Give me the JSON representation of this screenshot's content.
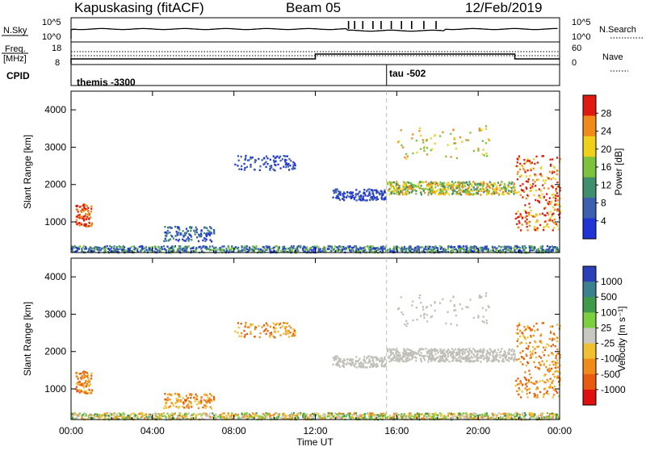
{
  "header": {
    "radar": "Kapuskasing (fitACF)",
    "beam": "Beam 05",
    "date": "12/Feb/2019"
  },
  "status_panel": {
    "nsky_label": "N.Sky",
    "nsky_ticks": [
      "10^5",
      "10^0"
    ],
    "nsearch_label": "N.Search",
    "nsearch_ticks": [
      "10^5",
      "10^0"
    ],
    "freq_label_1": "Freq.",
    "freq_label_2": "[MHz]",
    "freq_ticks": [
      "18",
      "8"
    ],
    "nave_label": "Nave",
    "nave_ticks": [
      "60",
      "0"
    ],
    "cpid_label": "CPID",
    "cpid_entries": [
      {
        "name": "themis -3300",
        "start_hour": 0
      },
      {
        "name": "tau -502",
        "start_hour": 15.5
      }
    ]
  },
  "chart_data": [
    {
      "type": "heatmap",
      "title": "Power",
      "xlabel": "",
      "ylabel": "Slant Range [km]",
      "xlim": [
        0,
        24
      ],
      "ylim": [
        180,
        4500
      ],
      "x_ticks": [
        "00:00",
        "04:00",
        "08:00",
        "12:00",
        "16:00",
        "20:00",
        "00:00"
      ],
      "y_ticks": [
        1000,
        2000,
        3000,
        4000
      ],
      "colorbar_label": "Power [dB]",
      "colorbar_ticks": [
        4,
        8,
        12,
        16,
        20,
        24,
        28
      ],
      "colorbar_colors": [
        "#1f33d6",
        "#3c5fb0",
        "#3f8f6e",
        "#7cc23a",
        "#f0d01a",
        "#f08a1a",
        "#e01a10"
      ],
      "cpid_change_hour": 15.5
    },
    {
      "type": "heatmap",
      "title": "Velocity",
      "xlabel": "Time UT",
      "ylabel": "Slant Range [km]",
      "xlim": [
        0,
        24
      ],
      "ylim": [
        180,
        4500
      ],
      "x_ticks": [
        "00:00",
        "04:00",
        "08:00",
        "12:00",
        "16:00",
        "20:00",
        "00:00"
      ],
      "y_ticks": [
        1000,
        2000,
        3000,
        4000
      ],
      "colorbar_label": "Velocity [m s⁻¹]",
      "colorbar_ticks": [
        "1000",
        "500",
        "100",
        "25",
        "-25",
        "-100",
        "-500",
        "-1000"
      ],
      "colorbar_colors": [
        "#2b3fb8",
        "#3c7f8f",
        "#3f9a4a",
        "#7cd040",
        "#c8c8c0",
        "#f0c030",
        "#f08a1a",
        "#e85a10",
        "#e01010"
      ],
      "ground_scatter_color": "#c0c0b8",
      "cpid_change_hour": 15.5
    }
  ]
}
